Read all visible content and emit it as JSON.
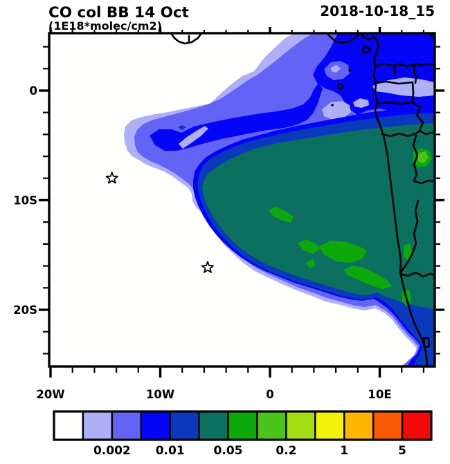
{
  "header": {
    "title": "CO col BB 14 Oct",
    "subtitle": "(1E18*molec/cm2)",
    "date": "2018-10-18_15"
  },
  "axes": {
    "x": {
      "major": [
        {
          "label": "20W",
          "lon": -20
        },
        {
          "label": "10W",
          "lon": -10
        },
        {
          "label": "0",
          "lon": 0
        },
        {
          "label": "10E",
          "lon": 10
        }
      ],
      "minor_lons": [
        -18,
        -16,
        -14,
        -12,
        -8,
        -6,
        -4,
        -2,
        2,
        4,
        6,
        8,
        12,
        14
      ]
    },
    "y": {
      "major": [
        {
          "label": "0",
          "lat": 0
        },
        {
          "label": "10S",
          "lat": -10
        },
        {
          "label": "20S",
          "lat": -20
        }
      ],
      "minor_lats": [
        4,
        2,
        -2,
        -4,
        -6,
        -8,
        -12,
        -14,
        -16,
        -18,
        -22,
        -24
      ]
    }
  },
  "colorbar": {
    "colors": [
      "#FFFFFE",
      "#AFAFF8",
      "#6363F5",
      "#0404F8",
      "#0A39BC",
      "#0C7060",
      "#0CA80C",
      "#4CC41C",
      "#A6DC14",
      "#F2F20A",
      "#FFB504",
      "#FA5A04",
      "#F50808"
    ],
    "tick_labels": [
      "0.002",
      "0.01",
      "0.05",
      "0.2",
      "1",
      "5"
    ],
    "tick_positions": [
      2,
      4,
      6,
      8,
      10,
      12
    ]
  },
  "chart_data": {
    "type": "heatmap",
    "subtype": "filled-contour-map",
    "title": "CO col BB 14 Oct",
    "units": "1E18*molec/cm2",
    "timestamp": "2018-10-18_15",
    "xlabel": "longitude",
    "ylabel": "latitude",
    "lon_range": [
      -20,
      15
    ],
    "lat_range": [
      -25,
      5.2
    ],
    "contour_levels": [
      0.001,
      0.002,
      0.005,
      0.01,
      0.02,
      0.05,
      0.1,
      0.2,
      0.5,
      1,
      2,
      5
    ],
    "labeled_levels": [
      "0.002",
      "0.01",
      "0.05",
      "0.2",
      "1",
      "5"
    ],
    "legend_position": "bottom",
    "grid": false,
    "description": "CO column plume from African biomass burning spreading west-northwest over the Atlantic; core 0.02-0.05 (teal) region over Angola/Congo coast with 0.05-0.1 (green) streaks and a 0.1-0.2 patch near the coast; concentric 0.01, 0.005, 0.002, 0.001 fringes toward the northwest; ocean elsewhere below 0.001 (white)",
    "markers": [
      {
        "symbol": "star",
        "lon": -14.4,
        "lat": -8.0
      },
      {
        "symbol": "star",
        "lon": -5.68,
        "lat": -16.15
      }
    ]
  }
}
